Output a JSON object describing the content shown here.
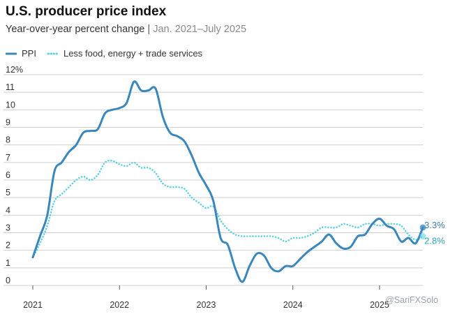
{
  "title": "U.S. producer price index",
  "subtitle": {
    "main": "Year-over-year percent change",
    "separator": "|",
    "range": "Jan. 2021–July 2025"
  },
  "watermark": "@SariFXSolo",
  "colors": {
    "ppi": "#3a87bd",
    "core": "#5fd3e3",
    "grid": "#cfcfcf",
    "label_ppi": "#3a7fb1",
    "label_core": "#2fa8b8"
  },
  "chart_data": {
    "type": "line",
    "title": "U.S. producer price index",
    "subtitle": "Year-over-year percent change | Jan. 2021–July 2025",
    "xlabel": "",
    "ylabel": "",
    "ylim": [
      0,
      12
    ],
    "xlim": [
      2021.0,
      2025.5
    ],
    "yticks": [
      "12%",
      "11",
      "10",
      "9",
      "8",
      "7",
      "6",
      "5",
      "4",
      "3",
      "2",
      "1",
      "0"
    ],
    "xticks": [
      "2021",
      "2022",
      "2023",
      "2024",
      "2025"
    ],
    "x": [
      2021.0,
      2021.083,
      2021.167,
      2021.25,
      2021.333,
      2021.417,
      2021.5,
      2021.583,
      2021.667,
      2021.75,
      2021.833,
      2021.917,
      2022.0,
      2022.083,
      2022.167,
      2022.25,
      2022.333,
      2022.417,
      2022.5,
      2022.583,
      2022.667,
      2022.75,
      2022.833,
      2022.917,
      2023.0,
      2023.083,
      2023.167,
      2023.25,
      2023.333,
      2023.417,
      2023.5,
      2023.583,
      2023.667,
      2023.75,
      2023.833,
      2023.917,
      2024.0,
      2024.083,
      2024.167,
      2024.25,
      2024.333,
      2024.417,
      2024.5,
      2024.583,
      2024.667,
      2024.75,
      2024.833,
      2024.917,
      2025.0,
      2025.083,
      2025.167,
      2025.25,
      2025.333,
      2025.417,
      2025.5
    ],
    "series": [
      {
        "name": "PPI",
        "style": "solid",
        "values": [
          1.6,
          2.8,
          4.0,
          6.5,
          7.0,
          7.6,
          8.0,
          8.7,
          8.8,
          8.9,
          9.8,
          10.0,
          10.1,
          10.4,
          11.6,
          11.1,
          11.1,
          11.2,
          9.6,
          8.7,
          8.5,
          8.2,
          7.4,
          6.4,
          5.7,
          4.8,
          2.7,
          2.3,
          1.0,
          0.2,
          1.1,
          1.8,
          1.7,
          1.0,
          0.8,
          1.1,
          1.1,
          1.5,
          1.9,
          2.2,
          2.5,
          2.9,
          2.4,
          2.1,
          2.2,
          2.8,
          2.9,
          3.5,
          3.8,
          3.4,
          3.2,
          2.5,
          2.7,
          2.4,
          3.3
        ]
      },
      {
        "name": "Less food, energy + trade services",
        "style": "dotted",
        "values": [
          1.6,
          2.4,
          3.4,
          4.8,
          5.2,
          5.6,
          6.0,
          6.2,
          6.0,
          6.3,
          7.0,
          7.1,
          6.9,
          6.8,
          7.0,
          6.7,
          6.7,
          6.4,
          5.8,
          5.6,
          5.6,
          5.5,
          5.0,
          4.7,
          4.4,
          4.5,
          3.7,
          3.2,
          2.9,
          2.8,
          2.8,
          2.8,
          2.8,
          2.8,
          2.7,
          2.5,
          2.7,
          2.7,
          2.8,
          3.0,
          3.3,
          3.3,
          3.3,
          3.5,
          3.4,
          3.3,
          3.5,
          3.5,
          3.4,
          3.5,
          3.5,
          3.4,
          2.9,
          2.6,
          2.8
        ]
      }
    ],
    "annotations": [
      {
        "series": "PPI",
        "label": "3.3%"
      },
      {
        "series": "Less food, energy + trade services",
        "label": "2.8%"
      }
    ]
  }
}
